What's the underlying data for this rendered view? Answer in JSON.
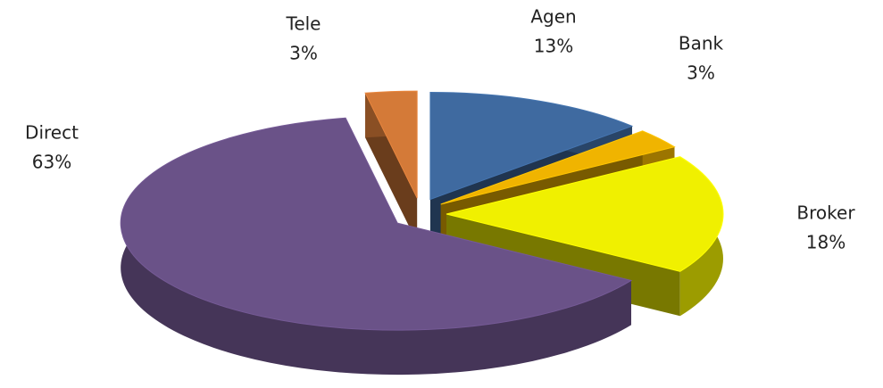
{
  "chart_data": {
    "type": "pie3d",
    "categories": [
      "Agen",
      "Bank",
      "Broker",
      "Direct",
      "Tele"
    ],
    "values": [
      13,
      3,
      18,
      63,
      3
    ],
    "value_labels": [
      "13%",
      "3%",
      "18%",
      "63%",
      "3%"
    ],
    "colors": [
      "#3f6aa0",
      "#f0b400",
      "#f0f000",
      "#6a5288",
      "#d47a38"
    ]
  }
}
